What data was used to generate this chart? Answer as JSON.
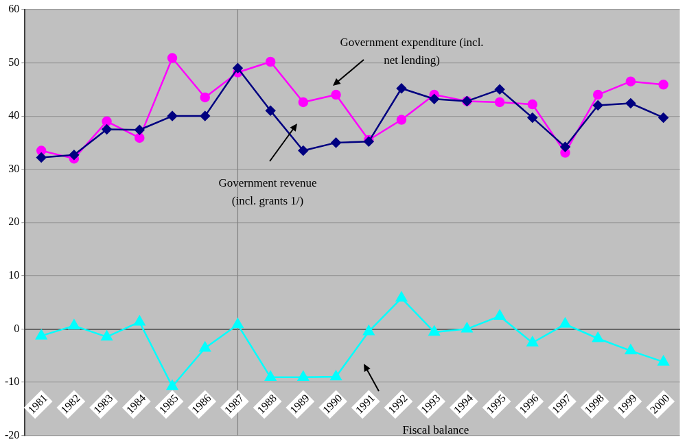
{
  "chart_data": {
    "type": "line",
    "categories": [
      "1981",
      "1982",
      "1983",
      "1984",
      "1985",
      "1986",
      "1987",
      "1988",
      "1989",
      "1990",
      "1991",
      "1992",
      "1993",
      "1994",
      "1995",
      "1996",
      "1997",
      "1998",
      "1999",
      "2000"
    ],
    "series": [
      {
        "color": "#000080",
        "marker": "diamond",
        "values": [
          32.2,
          32.7,
          37.5,
          37.4,
          40.0,
          40.0,
          49.0,
          41.0,
          33.5,
          35.0,
          35.2,
          45.2,
          43.2,
          42.8,
          45.0,
          39.7,
          34.2,
          42.0,
          42.4,
          39.7
        ]
      },
      {
        "color": "#ff00ff",
        "marker": "circle",
        "values": [
          33.5,
          32.0,
          39.0,
          35.9,
          50.9,
          43.5,
          48.2,
          50.2,
          42.6,
          44.0,
          35.5,
          39.3,
          44.0,
          42.8,
          42.6,
          42.2,
          33.1,
          44.0,
          46.5,
          45.9
        ]
      },
      {
        "color": "#00ffff",
        "marker": "triangle",
        "values": [
          -1.3,
          0.6,
          -1.5,
          1.3,
          -10.8,
          -3.6,
          0.8,
          -9.1,
          -9.1,
          -9.0,
          -0.5,
          5.8,
          -0.6,
          0.0,
          2.4,
          -2.6,
          0.9,
          -1.8,
          -4.1,
          -6.2
        ]
      }
    ],
    "ylim": [
      -20,
      60
    ],
    "yticks": [
      -20,
      -10,
      0,
      10,
      20,
      30,
      40,
      50,
      60
    ],
    "grid": "y",
    "legend": false,
    "ref_lines": [
      {
        "axis": "x",
        "value": "1987",
        "color": "#808080"
      }
    ],
    "annotations": [
      "Government expenditure (incl.\nnet lending)",
      "Government revenue\n(incl. grants 1/)",
      "Fiscal balance"
    ]
  }
}
